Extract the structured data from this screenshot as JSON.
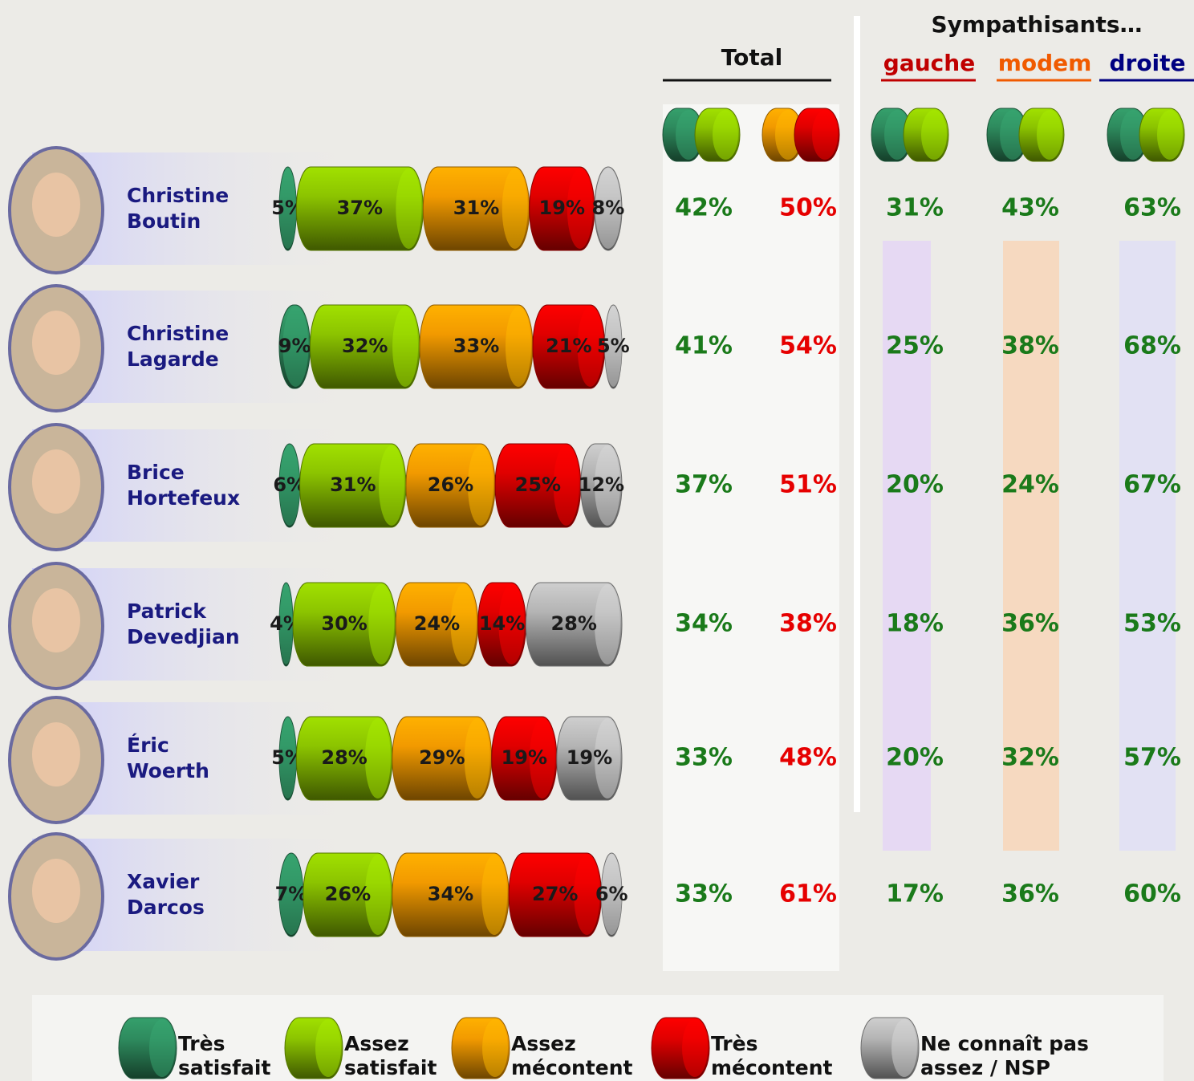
{
  "chart_data": {
    "type": "stacked-bar",
    "categories": [
      "Christine Boutin",
      "Christine Lagarde",
      "Brice Hortefeux",
      "Patrick Devedjian",
      "Éric Woerth",
      "Xavier Darcos"
    ],
    "series": [
      {
        "name": "Très satisfait",
        "color": "#2e8b5e",
        "values": [
          5,
          9,
          6,
          4,
          5,
          7
        ],
        "value_labels": [
          "5%",
          "9%",
          "6%",
          "4%",
          "5%",
          "7%"
        ]
      },
      {
        "name": "Assez satisfait",
        "color": "#8cc400",
        "values": [
          37,
          32,
          31,
          30,
          28,
          26
        ],
        "value_labels": [
          "37%",
          "32%",
          "31%",
          "30%",
          "28%",
          "26%"
        ]
      },
      {
        "name": "Assez mécontent",
        "color": "#f29a00",
        "values": [
          31,
          33,
          26,
          24,
          29,
          34
        ],
        "value_labels": [
          "31%",
          "33%",
          "26%",
          "24%",
          "29%",
          "34%"
        ]
      },
      {
        "name": "Très mécontent",
        "color": "#e00000",
        "values": [
          19,
          21,
          25,
          14,
          19,
          27
        ],
        "value_labels": [
          "19%",
          "21%",
          "25%",
          "14%",
          "19%",
          "27%"
        ]
      },
      {
        "name": "Ne connaît pas assez / NSP",
        "color": "#b4b4b4",
        "values": [
          8,
          5,
          12,
          28,
          19,
          6
        ],
        "value_labels": [
          "8%",
          "5%",
          "12%",
          "28%",
          "19%",
          "6%"
        ]
      }
    ]
  },
  "table": {
    "total": {
      "title": "Total",
      "satisfied": {
        "color": "#1a7a1a",
        "cells": [
          "42%",
          "41%",
          "37%",
          "34%",
          "33%",
          "33%"
        ]
      },
      "dissatisfied": {
        "color": "#e60000",
        "cells": [
          "50%",
          "54%",
          "51%",
          "38%",
          "48%",
          "61%"
        ]
      }
    },
    "sympathisants": {
      "title": "Sympathisants…",
      "groups": [
        {
          "name": "gauche",
          "color": "#c00000",
          "cells": [
            "31%",
            "25%",
            "20%",
            "18%",
            "20%",
            "17%"
          ]
        },
        {
          "name": "modem",
          "color": "#f05a00",
          "cells": [
            "43%",
            "38%",
            "24%",
            "36%",
            "32%",
            "36%"
          ]
        },
        {
          "name": "droite",
          "color": "#000080",
          "cells": [
            "63%",
            "68%",
            "67%",
            "53%",
            "57%",
            "60%"
          ]
        }
      ]
    }
  }
}
